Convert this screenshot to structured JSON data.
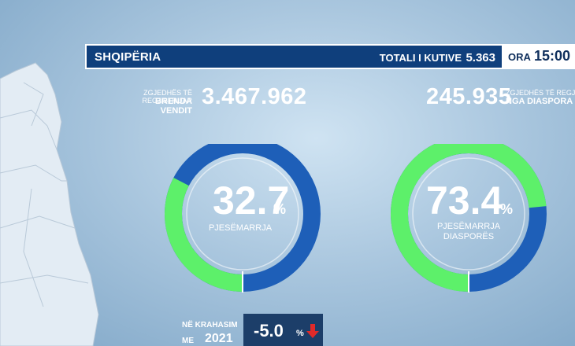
{
  "header": {
    "region": "SHQIPËRIA",
    "total_label": "TOTALI I KUTIVE",
    "total_value": "5.363",
    "time_label": "ORA",
    "time_value": "15:00"
  },
  "domestic": {
    "registered_caption": "ZGJEDHËS TË REGJISTRUAR",
    "registered_scope": "BRENDA VENDIT",
    "registered_value": "3.467.962",
    "turnout_value": "32.7",
    "turnout_unit": "%",
    "turnout_label_line1": "PJESËMARRJA",
    "turnout_fraction": 0.327
  },
  "diaspora": {
    "registered_caption": "ZGJEDHËS TË REGJISTR",
    "registered_scope": "NGA DIASPORA",
    "registered_value": "245.935",
    "turnout_value": "73.4",
    "turnout_unit": "%",
    "turnout_label_line1": "PJESËMARRJA",
    "turnout_label_line2": "DIASPORËS",
    "turnout_fraction": 0.734
  },
  "comparison": {
    "label_line1": "NË KRAHASIM",
    "label_line2": "ME",
    "year": "2021",
    "value": "-5.0",
    "unit": "%"
  },
  "colors": {
    "bar": "#0f3f7c",
    "donut_blue": "#1e5fb8",
    "donut_green": "#5df06a",
    "arrow_red": "#e02a2a"
  }
}
